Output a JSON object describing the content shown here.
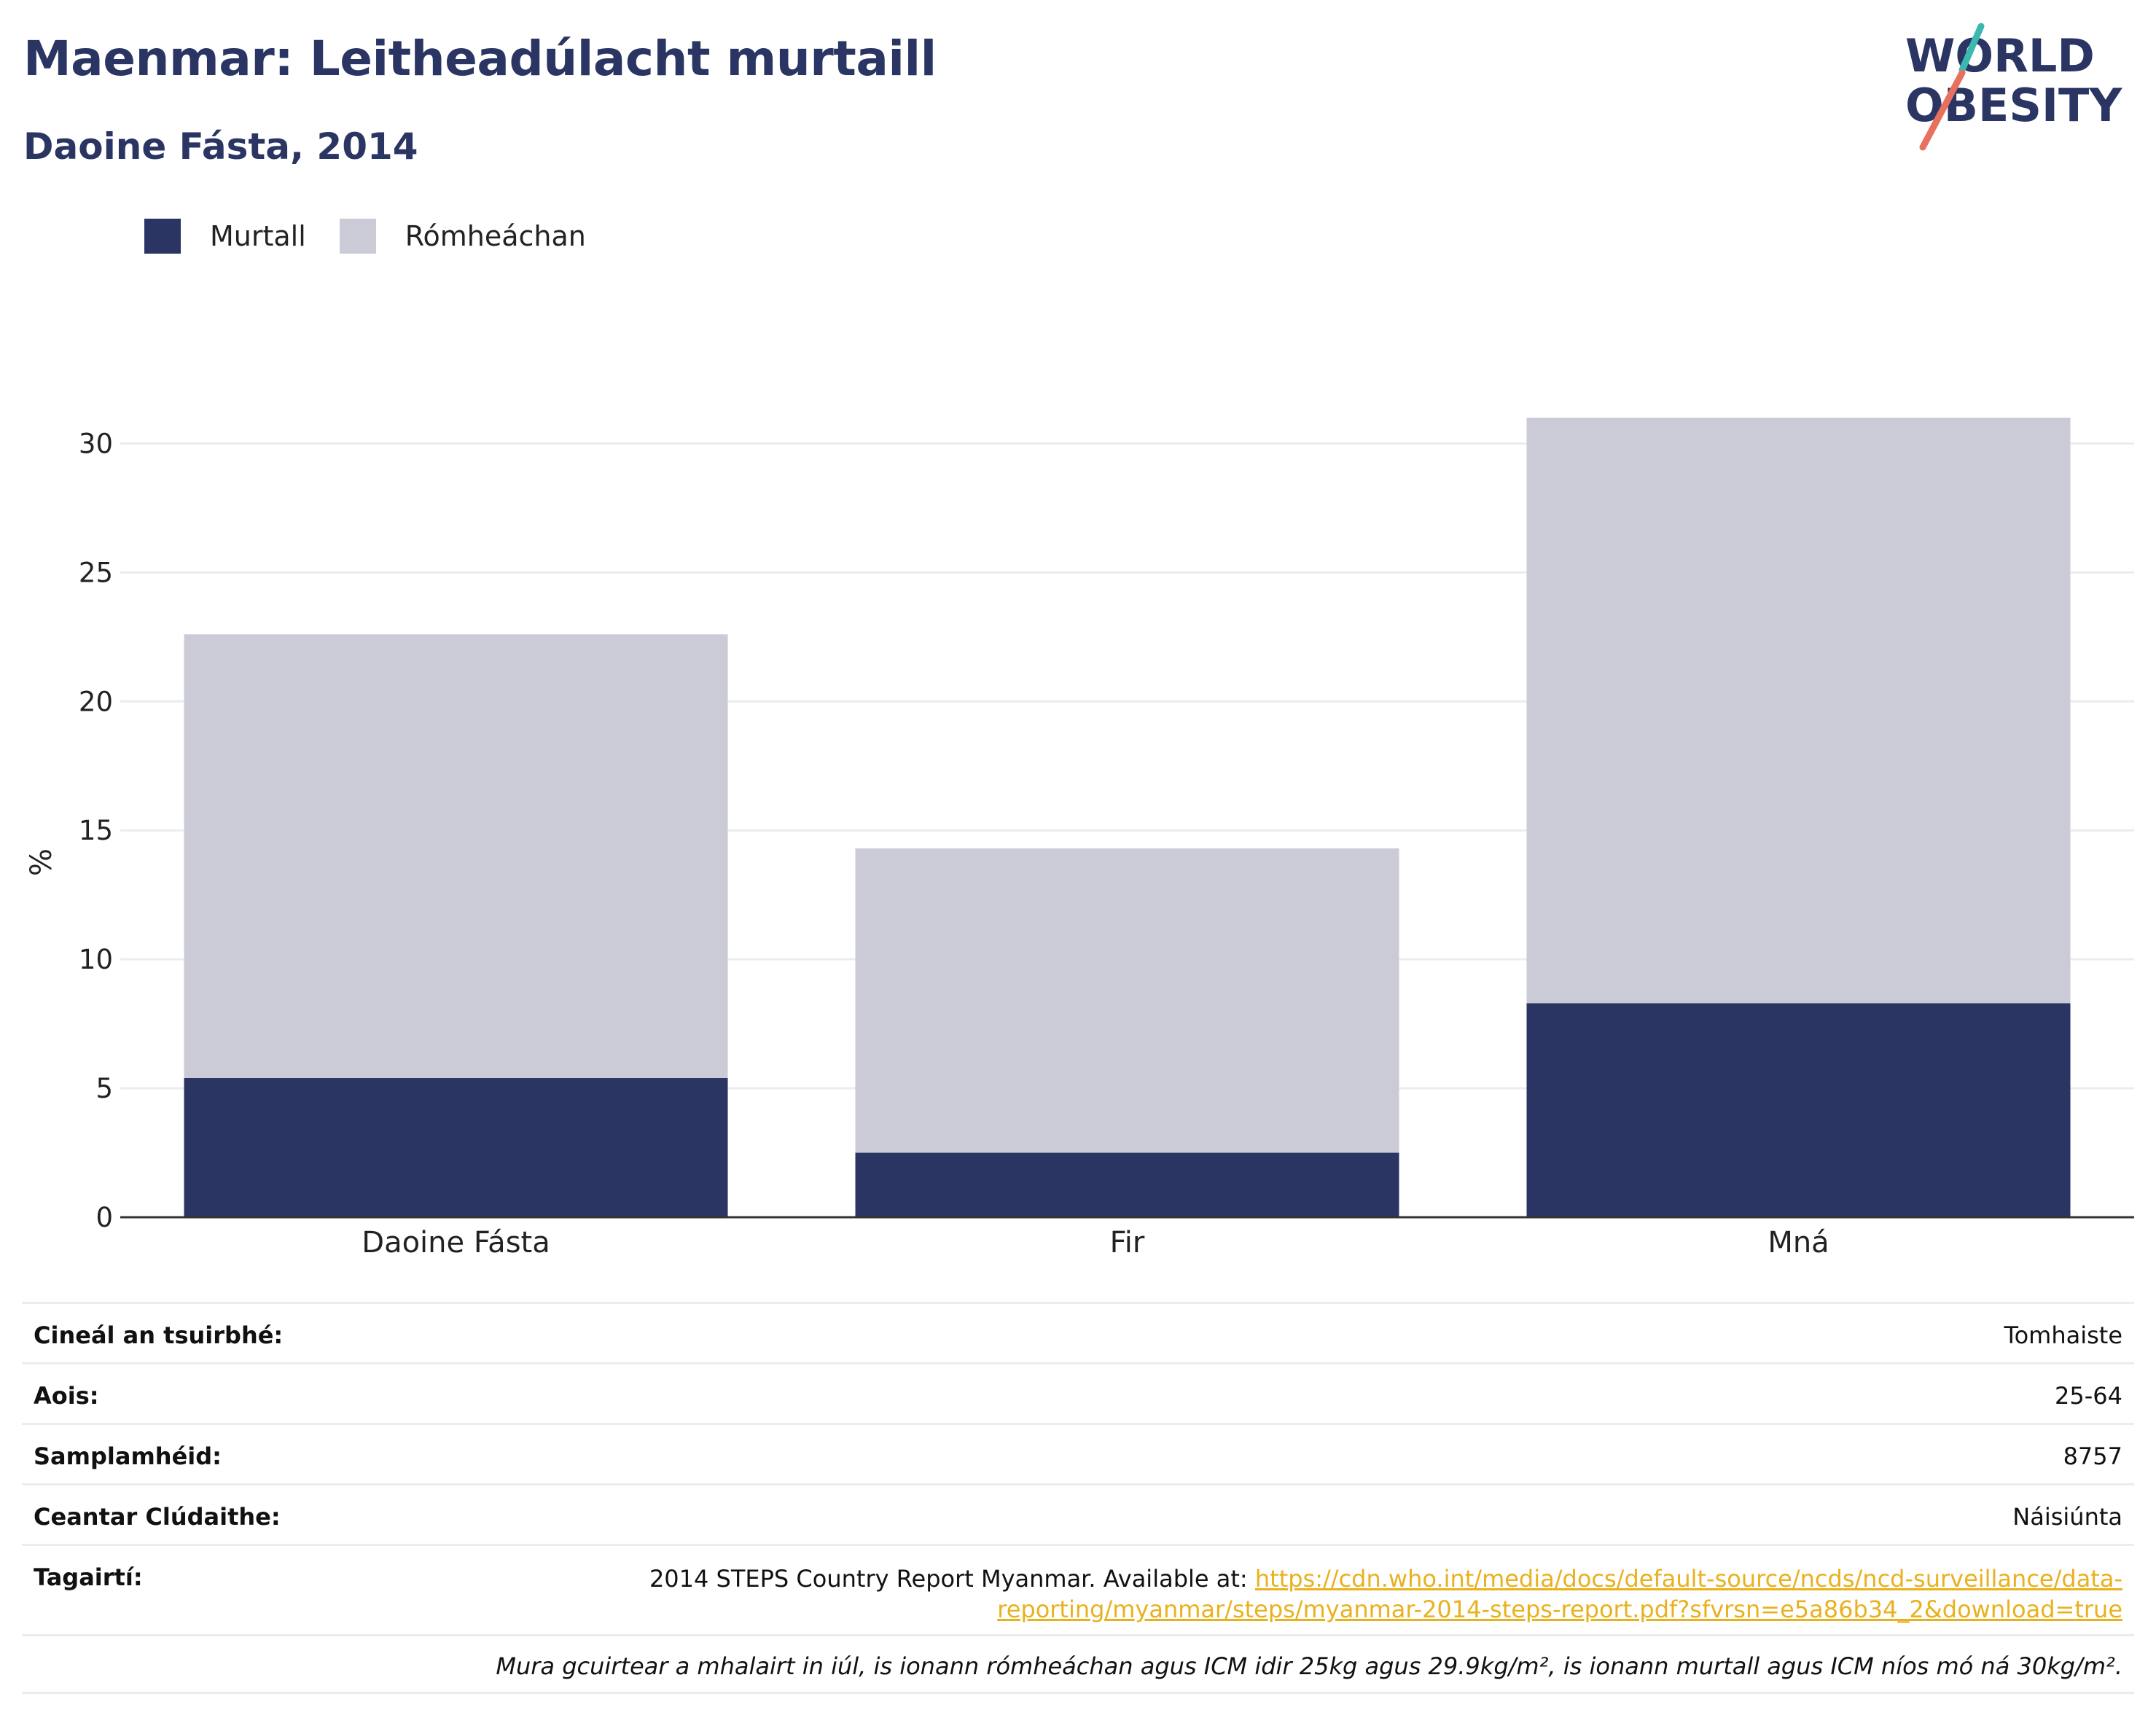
{
  "header": {
    "title": "Maenmar: Leitheadúlacht murtaill",
    "subtitle": "Daoine Fásta, 2014"
  },
  "logo": {
    "line1": "WORLD",
    "line2": "OBESITY",
    "icon": "world-obesity-logo"
  },
  "legend": [
    {
      "label": "Murtall",
      "color": "#2a3563"
    },
    {
      "label": "Rómheáchan",
      "color": "#cacbd6"
    }
  ],
  "chart_data": {
    "type": "bar",
    "stacked": true,
    "categories": [
      "Daoine Fásta",
      "Fir",
      "Mná"
    ],
    "series": [
      {
        "name": "Murtall",
        "values": [
          5.4,
          2.5,
          8.3
        ],
        "color": "#2a3563"
      },
      {
        "name": "Rómheáchan",
        "values": [
          17.2,
          11.8,
          22.7
        ],
        "color": "#cacbd6"
      }
    ],
    "ylabel": "%",
    "xlabel": "",
    "ylim": [
      0,
      32.5
    ],
    "yticks": [
      0,
      5,
      10,
      15,
      20,
      25,
      30
    ],
    "grid": true,
    "legend_position": "top-left"
  },
  "info": {
    "survey_type_label": "Cineál an tsuirbhé:",
    "survey_type_value": "Tomhaiste",
    "age_label": "Aois:",
    "age_value": "25-64",
    "sample_label": "Samplamhéid:",
    "sample_value": "8757",
    "coverage_label": "Ceantar Clúdaithe:",
    "coverage_value": "Náisiúnta",
    "references_label": "Tagairtí:",
    "references_text": "2014 STEPS Country Report Myanmar. Available at: ",
    "references_link_part1": "https://cdn.who.int/media/docs/default-source/ncds/ncd-surveillance/data-",
    "references_link_part2": "reporting/myanmar/steps/myanmar-2014-steps-report.pdf?sfvrsn=e5a86b34_2&download=true",
    "note": "Mura gcuirtear a mhalairt in iúl, is ionann rómheáchan agus ICM idir 25kg agus 29.9kg/m², is ionann murtall agus ICM níos mó ná 30kg/m²."
  }
}
